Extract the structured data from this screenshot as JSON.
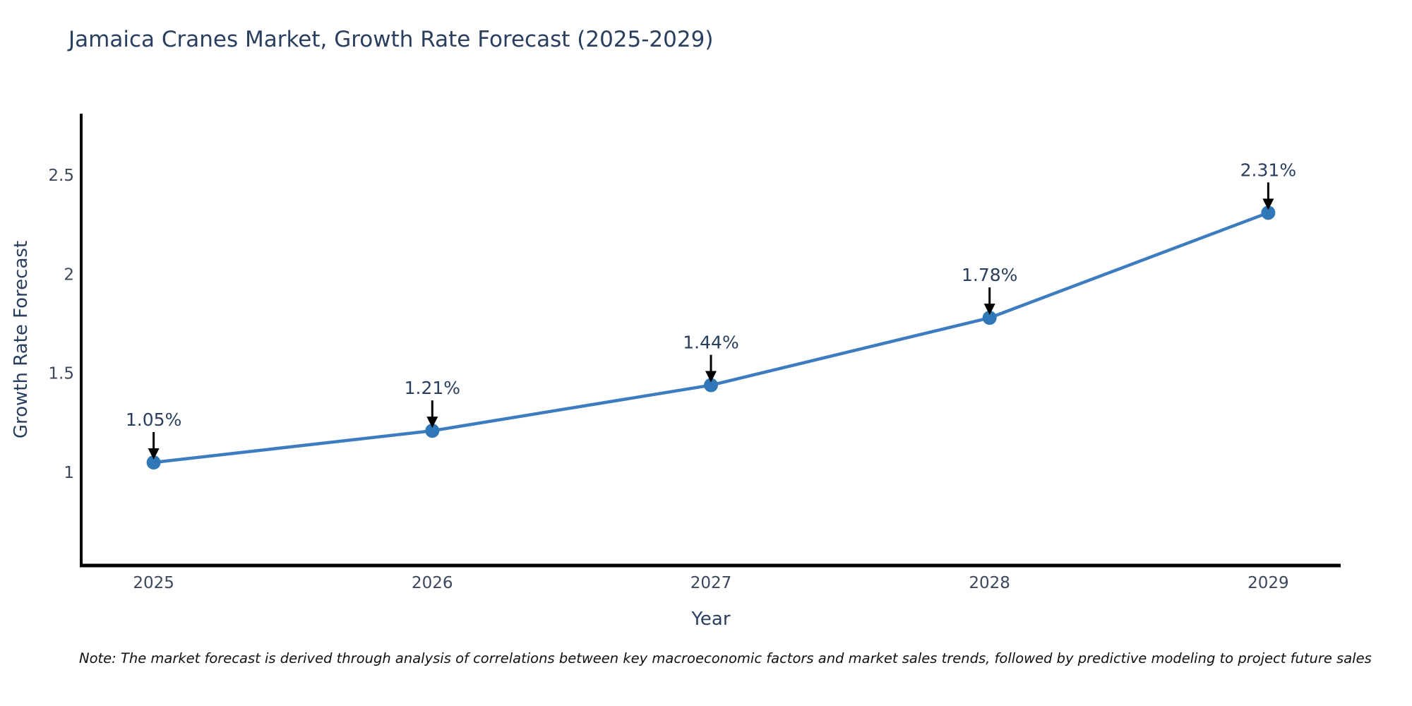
{
  "title": "Jamaica Cranes Market, Growth Rate Forecast (2025-2029)",
  "note": "Note: The market forecast is derived through analysis of correlations between key macroeconomic factors and market sales trends, followed by predictive modeling to project future sales",
  "colors": {
    "line": "#3d7dbf",
    "marker": "#2f77b6",
    "axis": "#000000",
    "title_text": "#2a3f5f",
    "tick_text": "#3c475c",
    "annotation_text": "#2a3f5f",
    "arrow": "#000000",
    "background": "#ffffff"
  },
  "chart_data": {
    "type": "line",
    "x": [
      2025,
      2026,
      2027,
      2028,
      2029
    ],
    "values": [
      1.05,
      1.21,
      1.44,
      1.78,
      2.31
    ],
    "point_labels": [
      "1.05%",
      "1.21%",
      "1.44%",
      "1.78%",
      "2.31%"
    ],
    "title": "Jamaica Cranes Market, Growth Rate Forecast (2025-2029)",
    "xlabel": "Year",
    "ylabel": "Growth Rate Forecast",
    "xticks": [
      2025,
      2026,
      2027,
      2028,
      2029
    ],
    "yticks": [
      1,
      1.5,
      2,
      2.5
    ],
    "xlim": [
      2024.74,
      2029.26
    ],
    "ylim": [
      0.53,
      2.81
    ],
    "grid": false,
    "legend": "none",
    "marker": "circle",
    "annotation_style": "value-label-with-down-arrow"
  }
}
